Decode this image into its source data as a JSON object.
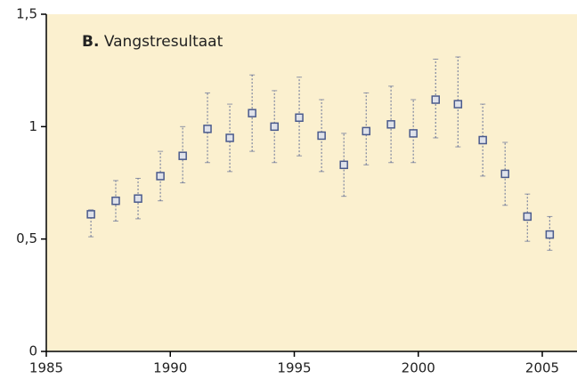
{
  "chart_data": {
    "type": "errorbar",
    "panel": "B.",
    "title": "Vangstresultaat",
    "background": "#fbf0cf",
    "xlim": [
      1985,
      2006.4
    ],
    "xticks": [
      1985,
      1990,
      1995,
      2000,
      2005
    ],
    "ylim": [
      0,
      1.5
    ],
    "yticks": [
      0,
      {
        "value": 0.5,
        "label": "0,5"
      },
      1,
      {
        "value": 1.5,
        "label": "1,5"
      }
    ],
    "series": [
      {
        "color": "#4a5a8c",
        "x": [
          1986.8,
          1987.8,
          1988.7,
          1989.6,
          1990.5,
          1991.5,
          1992.4,
          1993.3,
          1994.2,
          1995.2,
          1996.1,
          1997.0,
          1997.9,
          1998.9,
          1999.8,
          2000.7,
          2001.6,
          2002.6,
          2003.5,
          2004.4,
          2005.3
        ],
        "values": [
          0.61,
          0.67,
          0.68,
          0.78,
          0.87,
          0.99,
          0.95,
          1.06,
          1.0,
          1.04,
          0.96,
          0.83,
          0.98,
          1.01,
          0.97,
          1.12,
          1.1,
          0.94,
          0.79,
          0.6,
          0.52
        ],
        "low": [
          0.51,
          0.58,
          0.59,
          0.67,
          0.75,
          0.84,
          0.8,
          0.89,
          0.84,
          0.87,
          0.8,
          0.69,
          0.83,
          0.84,
          0.84,
          0.95,
          0.91,
          0.78,
          0.65,
          0.49,
          0.45
        ],
        "high": [
          0.63,
          0.76,
          0.77,
          0.89,
          1.0,
          1.15,
          1.1,
          1.23,
          1.16,
          1.22,
          1.12,
          0.97,
          1.15,
          1.18,
          1.12,
          1.3,
          1.31,
          1.1,
          0.93,
          0.7,
          0.6
        ]
      }
    ]
  }
}
